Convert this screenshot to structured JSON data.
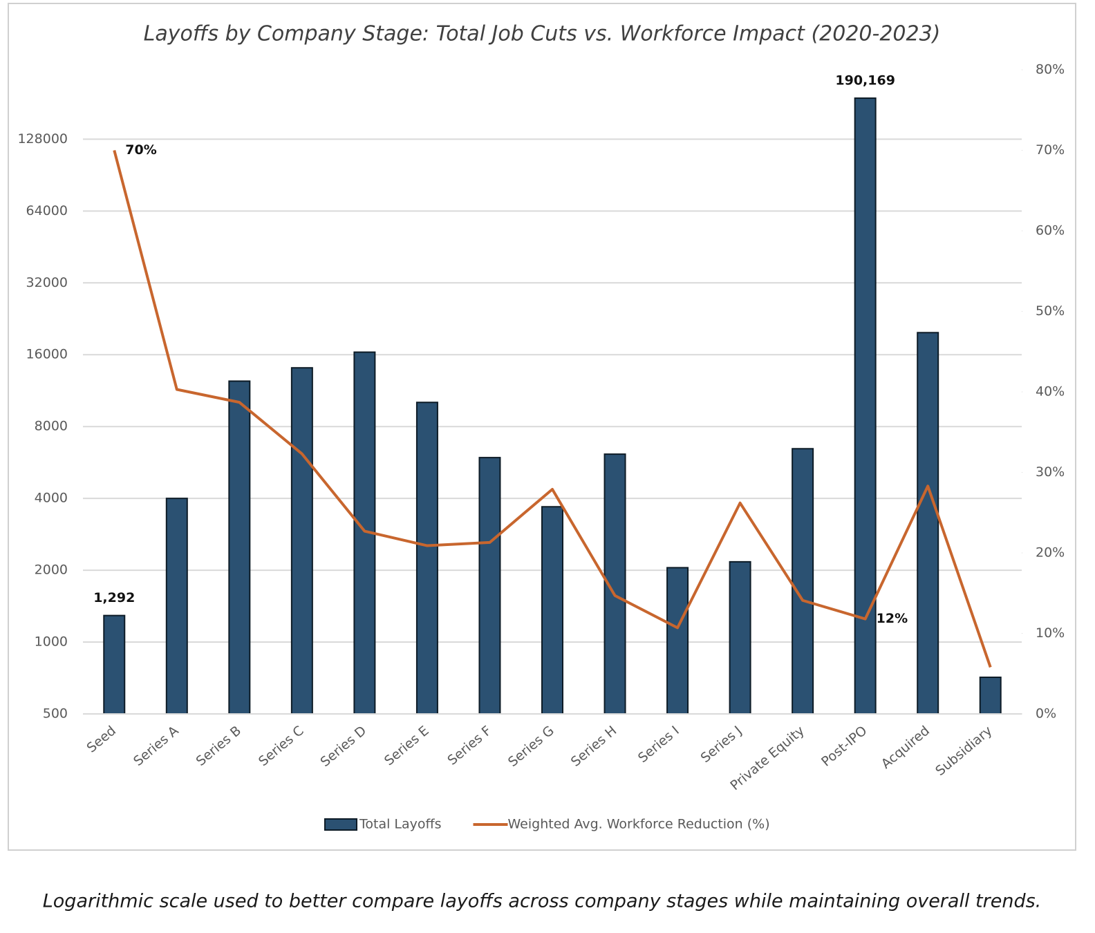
{
  "chart_data": {
    "type": "bar",
    "title": "Layoffs by Company Stage: Total Job Cuts vs. Workforce Impact (2020-2023)",
    "categories": [
      "Seed",
      "Series A",
      "Series B",
      "Series C",
      "Series D",
      "Series E",
      "Series F",
      "Series G",
      "Series H",
      "Series I",
      "Series J",
      "Private Equity",
      "Post-IPO",
      "Acquired",
      "Subsidiary"
    ],
    "series": [
      {
        "name": "Total Layoffs",
        "type": "bar",
        "color": "#2b5172",
        "values": [
          1292,
          4000,
          12400,
          14100,
          16400,
          10100,
          5930,
          3690,
          6130,
          2050,
          2170,
          6460,
          190169,
          19800,
          712
        ],
        "value_labels": [
          "1,292",
          null,
          null,
          null,
          null,
          null,
          null,
          null,
          null,
          null,
          null,
          null,
          "190,169",
          null,
          null
        ]
      },
      {
        "name": "Weighted Avg. Workforce Reduction (%)",
        "type": "line",
        "axis": "y2",
        "color": "#c8662e",
        "values": [
          70,
          40.3,
          38.7,
          32.3,
          22.7,
          20.9,
          21.3,
          27.9,
          14.7,
          10.7,
          26.2,
          14.1,
          11.8,
          28.3,
          5.8
        ],
        "value_labels": [
          "70%",
          null,
          null,
          null,
          null,
          null,
          null,
          null,
          null,
          null,
          null,
          null,
          "12%",
          null,
          null
        ]
      }
    ],
    "log_scale": true,
    "ylim": [
      500,
      250000
    ],
    "yticks": [
      500,
      1000,
      2000,
      4000,
      8000,
      16000,
      32000,
      64000,
      128000
    ],
    "y2lim": [
      0,
      80
    ],
    "y2ticks": [
      {
        "value": 0,
        "label": "0%"
      },
      {
        "value": 10,
        "label": "10%"
      },
      {
        "value": 20,
        "label": "20%"
      },
      {
        "value": 30,
        "label": "30%"
      },
      {
        "value": 40,
        "label": "40%"
      },
      {
        "value": 50,
        "label": "50%"
      },
      {
        "value": 60,
        "label": "60%"
      },
      {
        "value": 70,
        "label": "70%"
      },
      {
        "value": 80,
        "label": "80%"
      }
    ],
    "grid": true,
    "legend": "bottom",
    "caption": "Logarithmic scale used to better compare layoffs across company stages while maintaining overall trends."
  }
}
